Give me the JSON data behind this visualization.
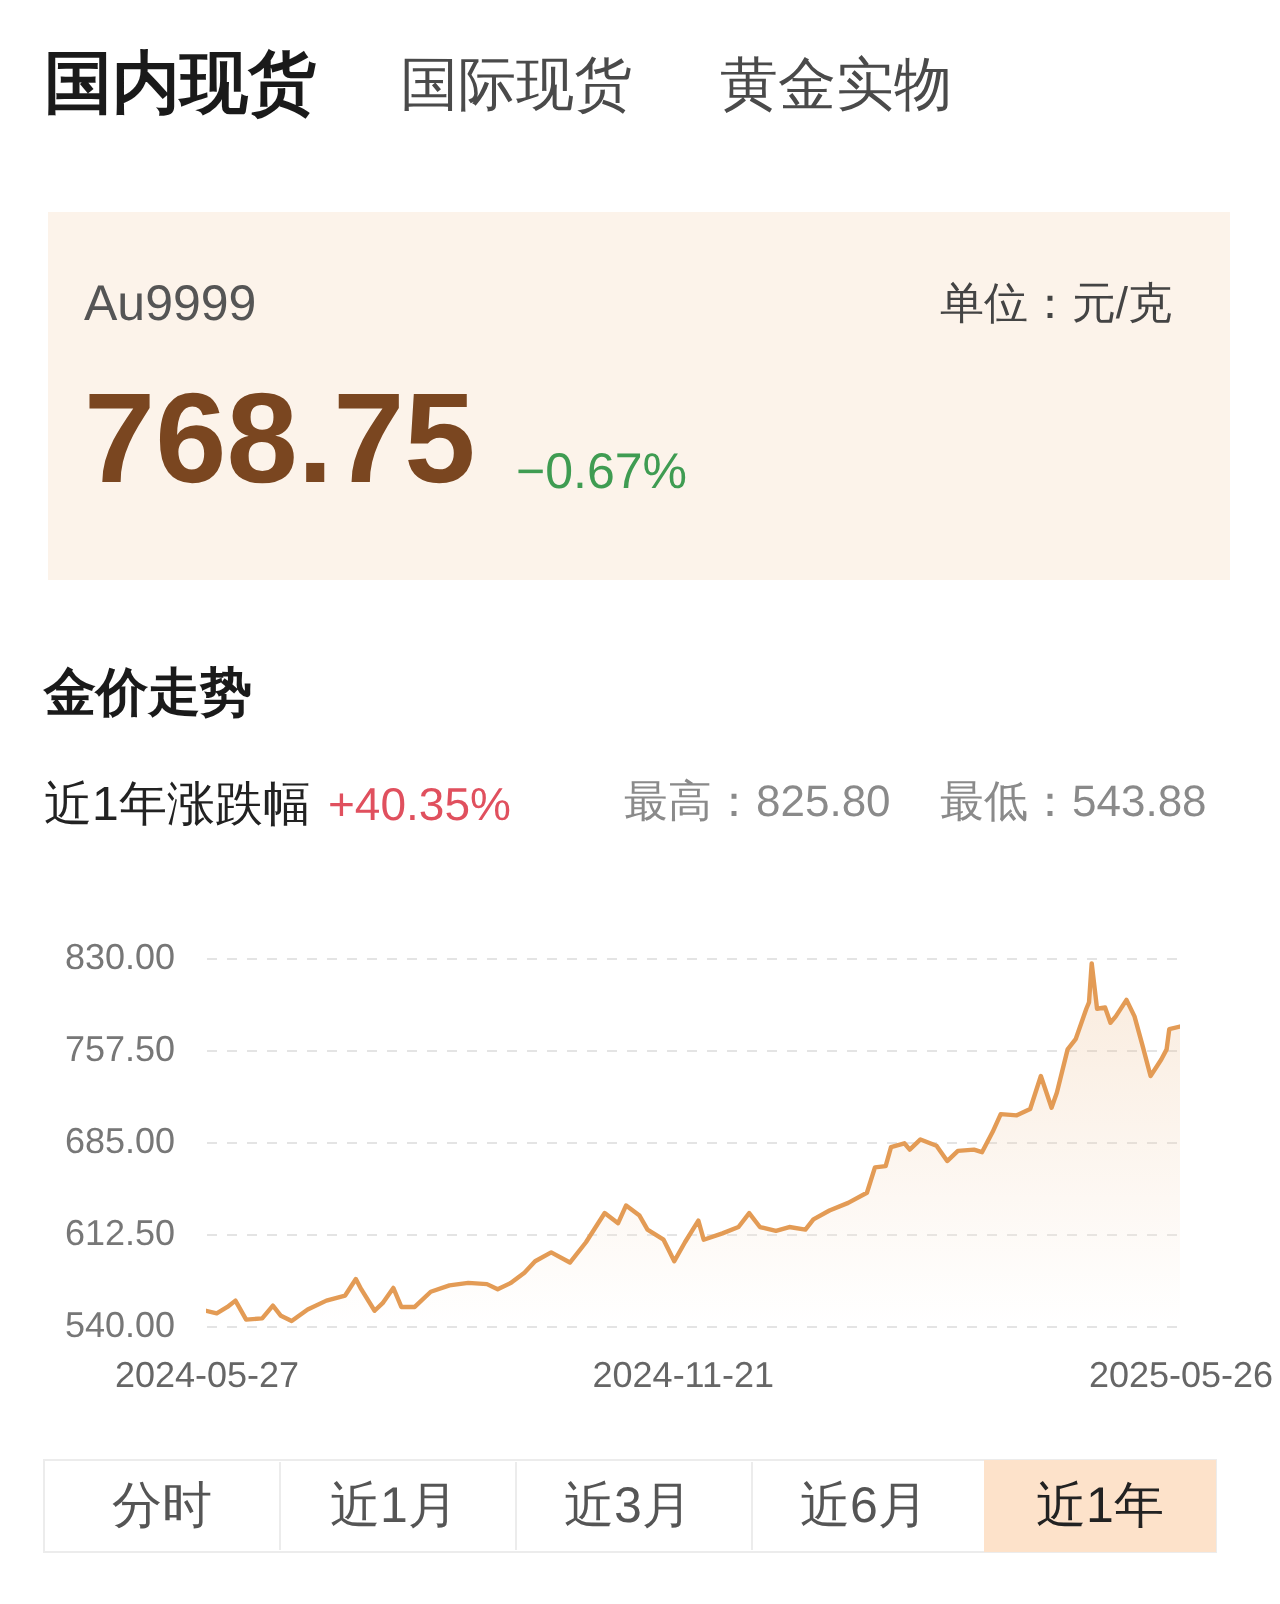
{
  "chart_data": {
    "type": "area",
    "title": "金价走势",
    "annotations": [
      "国内现货",
      "国际现货",
      "黄金实物",
      "Au9999",
      "单位：元/克",
      "768.75",
      "−0.67%",
      "近1年涨跌幅",
      "+40.35%",
      "最高：825.80",
      "最低：543.88",
      "分时",
      "近1月",
      "近3月",
      "近6月",
      "近1年"
    ],
    "x": [
      "2024-05-27",
      "2024-05-31",
      "2024-06-04",
      "2024-06-07",
      "2024-06-11",
      "2024-06-17",
      "2024-06-21",
      "2024-06-24",
      "2024-06-28",
      "2024-07-04",
      "2024-07-11",
      "2024-07-18",
      "2024-07-22",
      "2024-07-24",
      "2024-07-29",
      "2024-08-01",
      "2024-08-05",
      "2024-08-08",
      "2024-08-13",
      "2024-08-19",
      "2024-08-26",
      "2024-09-02",
      "2024-09-09",
      "2024-09-13",
      "2024-09-18",
      "2024-09-23",
      "2024-09-27",
      "2024-10-03",
      "2024-10-10",
      "2024-10-16",
      "2024-10-23",
      "2024-10-28",
      "2024-10-31",
      "2024-11-05",
      "2024-11-08",
      "2024-11-14",
      "2024-11-18",
      "2024-11-22",
      "2024-11-27",
      "2024-11-29",
      "2024-12-06",
      "2024-12-12",
      "2024-12-16",
      "2024-12-20",
      "2024-12-26",
      "2024-12-31",
      "2025-01-06",
      "2025-01-09",
      "2025-01-15",
      "2025-01-22",
      "2025-01-29",
      "2025-02-01",
      "2025-02-05",
      "2025-02-07",
      "2025-02-12",
      "2025-02-14",
      "2025-02-18",
      "2025-02-24",
      "2025-02-28",
      "2025-03-04",
      "2025-03-10",
      "2025-03-13",
      "2025-03-17",
      "2025-03-20",
      "2025-03-26",
      "2025-03-31",
      "2025-04-04",
      "2025-04-08",
      "2025-04-10",
      "2025-04-14",
      "2025-04-17",
      "2025-04-21",
      "2025-04-22",
      "2025-04-23",
      "2025-04-25",
      "2025-04-28",
      "2025-04-30",
      "2025-05-02",
      "2025-05-06",
      "2025-05-09",
      "2025-05-12",
      "2025-05-15",
      "2025-05-19",
      "2025-05-21",
      "2025-05-22",
      "2025-05-26"
    ],
    "series": [
      {
        "color": "#e39b55",
        "values": [
          552,
          550,
          555,
          560,
          545,
          546,
          556,
          548,
          543.88,
          553,
          560,
          564,
          577,
          569,
          552,
          558,
          570,
          555,
          555,
          567,
          572,
          574,
          573,
          569,
          574,
          582,
          591,
          598,
          590,
          606,
          629,
          621,
          635,
          627,
          616,
          608,
          591,
          606,
          623,
          608,
          613,
          618,
          629,
          618,
          615,
          618,
          616,
          624,
          631,
          637,
          645,
          665,
          666,
          681,
          684,
          679,
          687,
          682,
          670,
          678,
          679,
          677,
          693,
          707,
          706,
          711,
          737,
          712,
          724,
          758,
          766,
          790,
          795,
          825.8,
          790,
          791,
          779,
          784,
          797,
          784,
          761,
          737,
          750,
          758,
          774,
          776
        ]
      }
    ],
    "xlim": [
      "2024-05-27",
      "2025-05-26"
    ],
    "xticks": [
      "2024-05-27",
      "2024-11-21",
      "2025-05-26"
    ],
    "ylim": [
      540,
      830
    ],
    "yticks": [
      {
        "value": 540,
        "label": "540.00"
      },
      {
        "value": 612.5,
        "label": "612.50"
      },
      {
        "value": 685,
        "label": "685.00"
      },
      {
        "value": 757.5,
        "label": "757.50"
      },
      {
        "value": 830,
        "label": "830.00"
      }
    ],
    "grid": "y"
  }
}
